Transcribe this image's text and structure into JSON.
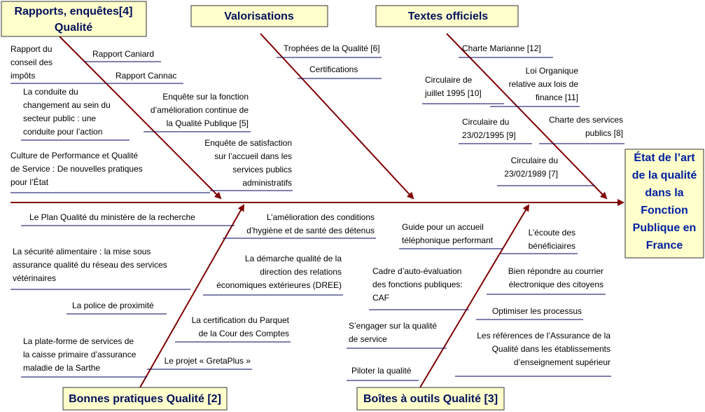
{
  "effect": {
    "lines": [
      "État de l’art",
      "de la qualité",
      "dans la",
      "Fonction",
      "Publique en",
      "France"
    ]
  },
  "categories": [
    {
      "title": [
        "Rapports, enquêtes[4]",
        "Qualité"
      ],
      "items": [
        {
          "lines": [
            "Rapport Caniard"
          ]
        },
        {
          "lines": [
            "Rapport du",
            "conseil des",
            "impôts"
          ]
        },
        {
          "lines": [
            "Rapport Cannac"
          ]
        },
        {
          "lines": [
            "La conduite du",
            "changement au sein du",
            "secteur public : une",
            "conduite pour l’action"
          ]
        },
        {
          "lines": [
            "Enquête sur la fonction",
            "d’amélioration continue de",
            "la Qualité Publique [5]"
          ]
        },
        {
          "lines": [
            "Culture de Performance et Qualité",
            "de Service : De nouvelles pratiques",
            "pour l’État"
          ]
        },
        {
          "lines": [
            "Enquête de satisfaction",
            "sur l’accueil dans les",
            "services publics",
            "administratifs"
          ]
        }
      ]
    },
    {
      "title": [
        "Valorisations"
      ],
      "items": [
        {
          "lines": [
            "Trophées de la Qualité [6]"
          ]
        },
        {
          "lines": [
            "Certifications"
          ]
        }
      ]
    },
    {
      "title": [
        "Textes officiels"
      ],
      "items": [
        {
          "lines": [
            "Charte Marianne [12]"
          ]
        },
        {
          "lines": [
            "Circulaire de",
            "juillet 1995 [10]"
          ]
        },
        {
          "lines": [
            "Loi Organique",
            "relative aux lois de",
            "finance [11]"
          ]
        },
        {
          "lines": [
            "Circulaire du",
            "23/02/1995 [9]"
          ]
        },
        {
          "lines": [
            "Charte des services",
            "publics [8]"
          ]
        },
        {
          "lines": [
            "Circulaire du",
            "23/02/1989 [7]"
          ]
        }
      ]
    },
    {
      "title": [
        "Bonnes pratiques Qualité [2]"
      ],
      "items": [
        {
          "lines": [
            "Le Plan Qualité du ministère de la recherche"
          ]
        },
        {
          "lines": [
            "L’amélioration des conditions",
            "d’hygiène et de santé des détenus"
          ]
        },
        {
          "lines": [
            "La sécurité alimentaire : la mise sous",
            "assurance qualité du réseau des services",
            "vétérinaires"
          ]
        },
        {
          "lines": [
            "La démarche qualité de la",
            "direction des relations",
            "économiques extérieures (DREE)"
          ]
        },
        {
          "lines": [
            "La police de proximité"
          ]
        },
        {
          "lines": [
            "La certification du Parquet",
            "de la Cour des Comptes"
          ]
        },
        {
          "lines": [
            "La plate-forme de services de",
            "la caisse primaire d’assurance",
            "maladie de la Sarthe"
          ]
        },
        {
          "lines": [
            "Le projet « GretaPlus »"
          ]
        }
      ]
    },
    {
      "title": [
        "Boîtes à outils Qualité [3]"
      ],
      "items": [
        {
          "lines": [
            "Guide pour un accueil",
            "téléphonique performant"
          ]
        },
        {
          "lines": [
            "L’écoute des",
            "bénéficiaires"
          ]
        },
        {
          "lines": [
            "Cadre d’auto-évaluation",
            "des fonctions publiques:",
            "CAF"
          ]
        },
        {
          "lines": [
            "Bien répondre au courrier",
            "électronique des citoyens"
          ]
        },
        {
          "lines": [
            "Optimiser les processus"
          ]
        },
        {
          "lines": [
            "S’engager sur la qualité",
            "de service"
          ]
        },
        {
          "lines": [
            "Les références de l’Assurance de la",
            "Qualité dans les établissements",
            "d’enseignement supérieur"
          ]
        },
        {
          "lines": [
            "Piloter la qualité"
          ]
        }
      ]
    }
  ]
}
